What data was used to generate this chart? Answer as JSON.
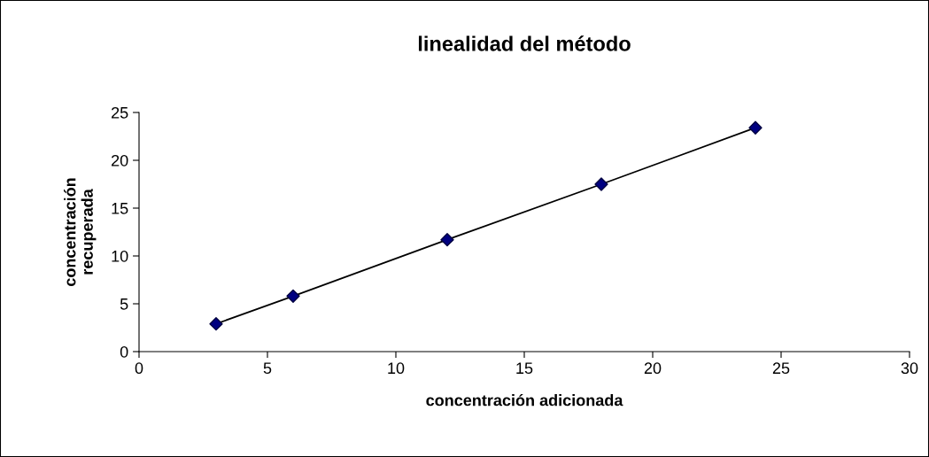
{
  "chart_data": {
    "type": "scatter",
    "title": "linealidad del método",
    "xlabel": "concentración adicionada",
    "ylabel": "concentración\nrecuperada",
    "x": [
      3,
      6,
      12,
      18,
      24
    ],
    "series": [
      {
        "color": "#000080",
        "marker": "diamond",
        "values": [
          2.9,
          5.8,
          11.7,
          17.5,
          23.4
        ]
      },
      {
        "type": "line",
        "color": "#000000",
        "marker": "none",
        "values": [
          2.9,
          5.8,
          11.7,
          17.5,
          23.4
        ]
      }
    ],
    "xlim": [
      0,
      30
    ],
    "xticks": [
      0,
      5,
      10,
      15,
      20,
      25,
      30
    ],
    "ylim": [
      0,
      25
    ],
    "yticks": [
      0,
      5,
      10,
      15,
      20,
      25
    ],
    "grid": false,
    "legend": false
  }
}
